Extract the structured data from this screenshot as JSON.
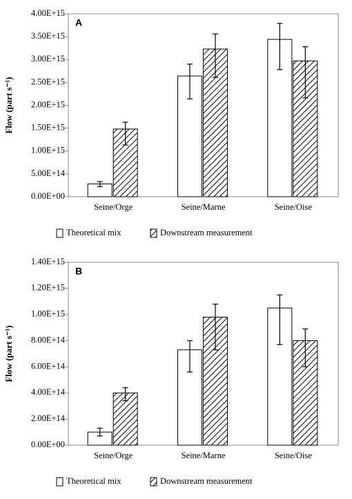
{
  "chart_data": [
    {
      "type": "bar",
      "panel": "A",
      "ylabel": "Flow (part s⁻¹)",
      "categories": [
        "Seine/Orge",
        "Seine/Marne",
        "Seine/Oise"
      ],
      "series": [
        {
          "name": "Theoretical mix",
          "color": "#ffffff",
          "hatch": false,
          "values": [
            280000000000000.0,
            2640000000000000.0,
            3440000000000000.0
          ],
          "err_low": [
            220000000000000.0,
            2140000000000000.0,
            2780000000000000.0
          ],
          "err_high": [
            330000000000000.0,
            2900000000000000.0,
            3790000000000000.0
          ]
        },
        {
          "name": "Downstream measurement",
          "color": "#000000",
          "hatch": true,
          "values": [
            1480000000000000.0,
            3230000000000000.0,
            2970000000000000.0
          ],
          "err_low": [
            1130000000000000.0,
            2610000000000000.0,
            2160000000000000.0
          ],
          "err_high": [
            1630000000000000.0,
            3560000000000000.0,
            3280000000000000.0
          ]
        }
      ],
      "ylim": [
        0,
        4000000000000000.0
      ],
      "yticks": [
        {
          "value": 0,
          "label": "0.00E+00"
        },
        {
          "value": 500000000000000.0,
          "label": "5.00E+14"
        },
        {
          "value": 1000000000000000.0,
          "label": "1.00E+15"
        },
        {
          "value": 1500000000000000.0,
          "label": "1.50E+15"
        },
        {
          "value": 2000000000000000.0,
          "label": "2.00E+15"
        },
        {
          "value": 2500000000000000.0,
          "label": "2.50E+15"
        },
        {
          "value": 3000000000000000.0,
          "label": "3.00E+15"
        },
        {
          "value": 3500000000000000.0,
          "label": "3.50E+15"
        },
        {
          "value": 4000000000000000.0,
          "label": "4.00E+15"
        }
      ]
    },
    {
      "type": "bar",
      "panel": "B",
      "ylabel": "Flow (part s⁻¹)",
      "categories": [
        "Seine/Orge",
        "Seine/Marne",
        "Seine/Oise"
      ],
      "series": [
        {
          "name": "Theoretical mix",
          "color": "#ffffff",
          "hatch": false,
          "values": [
            100000000000000.0,
            730000000000000.0,
            1050000000000000.0
          ],
          "err_low": [
            70000000000000.0,
            560000000000000.0,
            770000000000000.0
          ],
          "err_high": [
            130000000000000.0,
            800000000000000.0,
            1150000000000000.0
          ]
        },
        {
          "name": "Downstream measurement",
          "color": "#000000",
          "hatch": true,
          "values": [
            400000000000000.0,
            980000000000000.0,
            800000000000000.0
          ],
          "err_low": [
            340000000000000.0,
            730000000000000.0,
            600000000000000.0
          ],
          "err_high": [
            440000000000000.0,
            1080000000000000.0,
            890000000000000.0
          ]
        }
      ],
      "ylim": [
        0,
        1400000000000000.0
      ],
      "yticks": [
        {
          "value": 0,
          "label": "0.00E+00"
        },
        {
          "value": 200000000000000.0,
          "label": "2.00E+14"
        },
        {
          "value": 400000000000000.0,
          "label": "4.00E+14"
        },
        {
          "value": 600000000000000.0,
          "label": "6.00E+14"
        },
        {
          "value": 800000000000000.0,
          "label": "8.00E+14"
        },
        {
          "value": 1000000000000000.0,
          "label": "1.00E+15"
        },
        {
          "value": 1200000000000000.0,
          "label": "1.20E+15"
        },
        {
          "value": 1400000000000000.0,
          "label": "1.40E+15"
        }
      ]
    }
  ]
}
